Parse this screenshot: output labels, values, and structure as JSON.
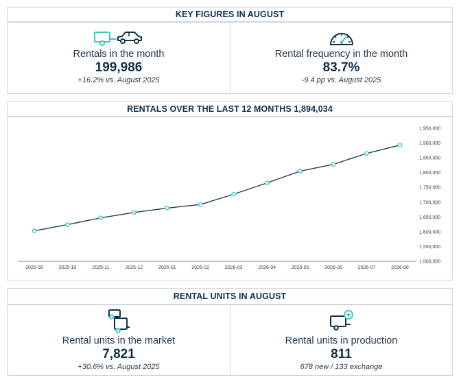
{
  "key_figures": {
    "title": "KEY FIGURES IN AUGUST",
    "rentals": {
      "label": "Rentals in the month",
      "value": "199,986",
      "sub": "+16.2% vs. August 2025",
      "icon": "trailer-car-icon"
    },
    "frequency": {
      "label": "Rental frequency in the month",
      "value": "83.7%",
      "sub": "-9.4 pp vs. August 2025",
      "icon": "speedometer-icon"
    }
  },
  "chart_section": {
    "title": "RENTALS OVER THE LAST 12 MONTHS 1,894,034"
  },
  "chart_data": {
    "type": "line",
    "categories": [
      "2025-09",
      "2025-10",
      "2025-11",
      "2025-12",
      "2026-01",
      "2026-02",
      "2026-03",
      "2026-04",
      "2026-05",
      "2026-06",
      "2026-07",
      "2026-08"
    ],
    "values": [
      1603000,
      1624000,
      1647000,
      1665000,
      1680000,
      1692000,
      1727000,
      1765000,
      1805000,
      1828000,
      1865000,
      1893000
    ],
    "ylim": [
      1500000,
      1950000
    ],
    "yticks": [
      1500000,
      1550000,
      1600000,
      1650000,
      1700000,
      1750000,
      1800000,
      1850000,
      1900000,
      1950000
    ],
    "ytick_labels": [
      "1,500,000",
      "1,550,000",
      "1,600,000",
      "1,650,000",
      "1,700,000",
      "1,750,000",
      "1,800,000",
      "1,850,000",
      "1,900,000",
      "1,950,000"
    ],
    "line_color": "#1f3b53",
    "marker_color": "#3ec9c0",
    "grid": false
  },
  "units": {
    "title": "RENTAL UNITS IN AUGUST",
    "market": {
      "label": "Rental units in the market",
      "value": "7,821",
      "sub": "+30.6% vs. August 2025",
      "icon": "trailers-icon"
    },
    "production": {
      "label": "Rental units in production",
      "value": "811",
      "sub": "678 new / 133 exchange",
      "icon": "trailer-add-icon"
    }
  },
  "colors": {
    "accent": "#3ec9c0",
    "dark": "#0f2f4a",
    "border": "#cfd6dc"
  }
}
